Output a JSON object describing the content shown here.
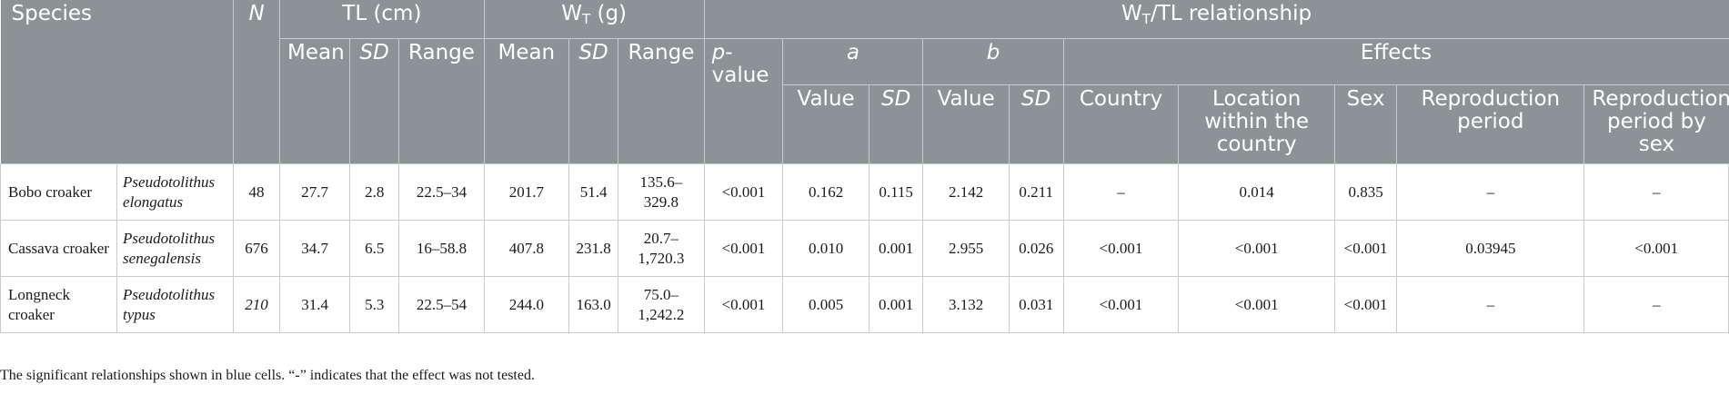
{
  "header": {
    "species": "Species",
    "n": "N",
    "tl_group": "TL (cm)",
    "wt_group_base": "W",
    "wt_group_sub": "T",
    "wt_group_unit": " (g)",
    "rel_group_base": "W",
    "rel_group_sub": "T",
    "rel_group_rest": "/TL relationship",
    "mean": "Mean",
    "sd": "SD",
    "range": "Range",
    "p_value": "p-value",
    "a": "a",
    "b": "b",
    "effects": "Effects",
    "value": "Value",
    "country": "Country",
    "location": "Location within the country",
    "sex": "Sex",
    "repro": "Reproduction period",
    "repro_sex": "Reproduction period by sex"
  },
  "rows": [
    {
      "common": "Bobo croaker",
      "scientific": "Pseudotolithus elongatus",
      "n": "48",
      "tl_mean": "27.7",
      "tl_sd": "2.8",
      "tl_range": "22.5–34",
      "wt_mean": "201.7",
      "wt_sd": "51.4",
      "wt_range": "135.6–329.8",
      "p": "<0.001",
      "a_value": "0.162",
      "a_sd": "0.115",
      "b_value": "2.142",
      "b_sd": "0.211",
      "country": "–",
      "location": "0.014",
      "sex": "0.835",
      "repro": "–",
      "repro_sex": "–"
    },
    {
      "common": "Cassava croaker",
      "scientific": "Pseudotolithus senegalensis",
      "n": "676",
      "tl_mean": "34.7",
      "tl_sd": "6.5",
      "tl_range": "16–58.8",
      "wt_mean": "407.8",
      "wt_sd": "231.8",
      "wt_range": "20.7–1,720.3",
      "p": "<0.001",
      "a_value": "0.010",
      "a_sd": "0.001",
      "b_value": "2.955",
      "b_sd": "0.026",
      "country": "<0.001",
      "location": "<0.001",
      "sex": "<0.001",
      "repro": "0.03945",
      "repro_sex": "<0.001"
    },
    {
      "common": "Longneck croaker",
      "scientific": "Pseudotolithus typus",
      "n": "210",
      "tl_mean": "31.4",
      "tl_sd": "5.3",
      "tl_range": "22.5–54",
      "wt_mean": "244.0",
      "wt_sd": "163.0",
      "wt_range": "75.0–1,242.2",
      "p": "<0.001",
      "a_value": "0.005",
      "a_sd": "0.001",
      "b_value": "3.132",
      "b_sd": "0.031",
      "country": "<0.001",
      "location": "<0.001",
      "sex": "<0.001",
      "repro": "–",
      "repro_sex": "–"
    }
  ],
  "footnote": "The significant relationships shown in blue cells. “-” indicates that the effect was not tested."
}
